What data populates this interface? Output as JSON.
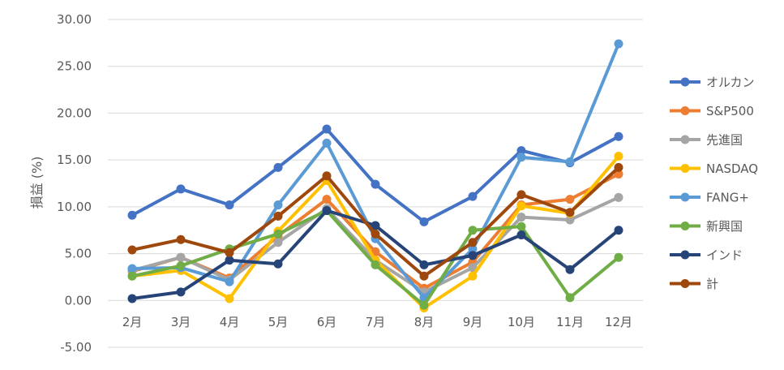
{
  "chart_data": {
    "type": "line",
    "title": "",
    "xlabel": "",
    "ylabel": "損益 (%)",
    "categories": [
      "2月",
      "3月",
      "4月",
      "5月",
      "6月",
      "7月",
      "8月",
      "9月",
      "10月",
      "11月",
      "12月"
    ],
    "ylim": [
      -5,
      30
    ],
    "yticks": [
      "30.00",
      "25.00",
      "20.00",
      "15.00",
      "10.00",
      "5.00",
      "0.00",
      "-5.00"
    ],
    "grid": "horizontal",
    "legend_position": "right",
    "series": [
      {
        "name": "オルカン",
        "color": "#4472C4",
        "values": [
          9.1,
          11.9,
          10.2,
          14.2,
          18.3,
          12.4,
          8.4,
          11.1,
          16.0,
          14.7,
          17.5
        ]
      },
      {
        "name": "S&P500",
        "color": "#ED7D31",
        "values": [
          3.1,
          4.6,
          2.4,
          6.9,
          10.8,
          5.2,
          1.3,
          4.1,
          10.2,
          10.8,
          13.5
        ]
      },
      {
        "name": "先進国",
        "color": "#A5A5A5",
        "values": [
          3.2,
          4.6,
          2.2,
          6.2,
          9.8,
          4.3,
          0.9,
          3.5,
          8.9,
          8.6,
          11.0
        ]
      },
      {
        "name": "NASDAQ",
        "color": "#FFC000",
        "values": [
          2.6,
          3.2,
          0.2,
          7.4,
          12.8,
          4.3,
          -0.8,
          2.6,
          10.1,
          9.3,
          15.4
        ]
      },
      {
        "name": "FANG+",
        "color": "#5B9BD5",
        "values": [
          3.4,
          3.5,
          2.0,
          10.2,
          16.8,
          6.6,
          0.3,
          5.5,
          15.3,
          14.8,
          27.4
        ]
      },
      {
        "name": "新興国",
        "color": "#70AD47",
        "values": [
          2.6,
          3.7,
          5.5,
          7.1,
          9.6,
          3.8,
          -0.5,
          7.5,
          7.9,
          0.3,
          4.6
        ]
      },
      {
        "name": "インド",
        "color": "#264478",
        "values": [
          0.2,
          0.9,
          4.3,
          3.9,
          9.6,
          8.0,
          3.8,
          4.8,
          7.0,
          3.3,
          7.5
        ]
      },
      {
        "name": "計",
        "color": "#9E480E",
        "values": [
          5.4,
          6.5,
          5.1,
          9.0,
          13.3,
          7.1,
          2.6,
          6.2,
          11.3,
          9.4,
          14.2
        ]
      }
    ]
  }
}
